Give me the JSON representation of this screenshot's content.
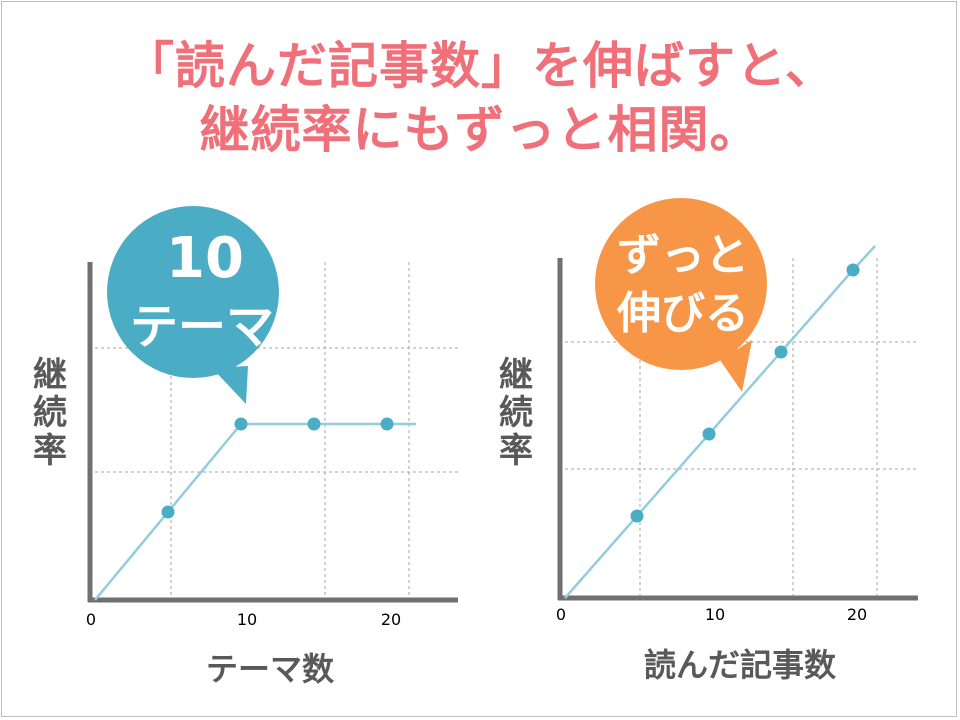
{
  "headline": {
    "line1": "「読んだ記事数」を伸ばすと、",
    "line2": "継続率にもずっと相関。"
  },
  "colors": {
    "headline": "#f0707a",
    "line": "#92cddc",
    "point": "#4bacc6",
    "axis": "#707070",
    "bubble_left": "#4bacc6",
    "bubble_right": "#f79646"
  },
  "chart_data": [
    {
      "type": "line",
      "ylabel_chars": [
        "継",
        "続",
        "率"
      ],
      "xlabel": "テーマ数",
      "x_ticks": [
        0,
        10,
        20
      ],
      "xlim": [
        0,
        22
      ],
      "ylim": [
        0,
        100
      ],
      "grid": true,
      "points": [
        {
          "x": 5,
          "y": 50
        },
        {
          "x": 10,
          "y": 100
        },
        {
          "x": 15,
          "y": 100
        },
        {
          "x": 20,
          "y": 100
        }
      ],
      "line": [
        {
          "x": 0,
          "y": 0
        },
        {
          "x": 10,
          "y": 100
        },
        {
          "x": 22,
          "y": 100
        }
      ],
      "callout": {
        "line1": "10",
        "line2": "テーマ"
      }
    },
    {
      "type": "line",
      "ylabel_chars": [
        "継",
        "続",
        "率"
      ],
      "xlabel": "読んだ記事数",
      "x_ticks": [
        0,
        10,
        20
      ],
      "xlim": [
        0,
        22
      ],
      "ylim": [
        0,
        100
      ],
      "grid": true,
      "points": [
        {
          "x": 5,
          "y": 25
        },
        {
          "x": 10,
          "y": 50
        },
        {
          "x": 15,
          "y": 75
        },
        {
          "x": 20,
          "y": 100
        }
      ],
      "line": [
        {
          "x": 0,
          "y": 0
        },
        {
          "x": 20,
          "y": 100
        }
      ],
      "callout": {
        "line1": "ずっと",
        "line2": "伸びる"
      }
    }
  ]
}
